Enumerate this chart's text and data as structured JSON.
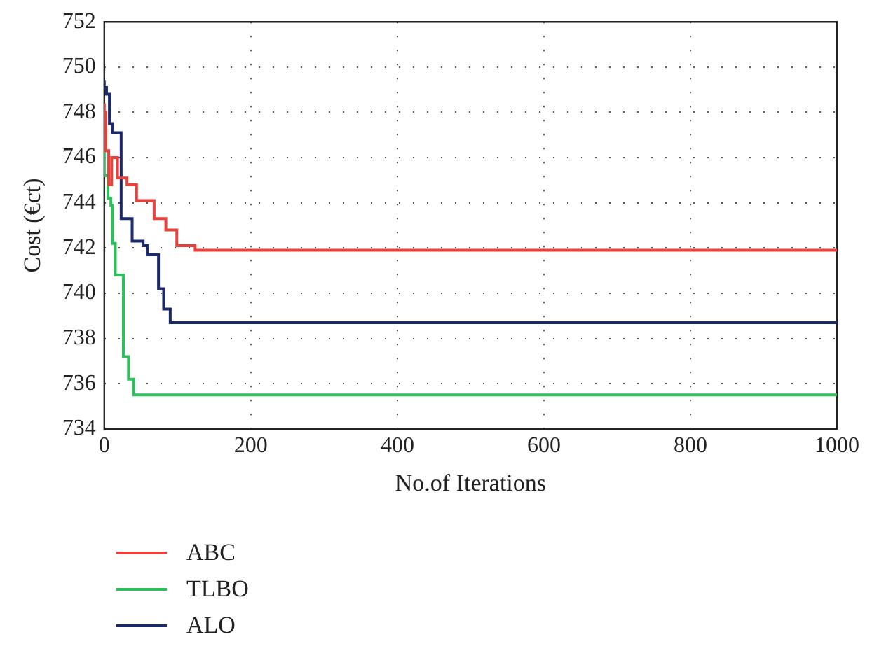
{
  "chart_data": {
    "type": "step",
    "xlabel": "No.of Iterations",
    "ylabel": "Cost (€ct)",
    "xlim": [
      0,
      1000
    ],
    "xticks": [
      0,
      200,
      400,
      600,
      800,
      1000
    ],
    "ylim": [
      734,
      752
    ],
    "yticks": [
      734,
      736,
      738,
      740,
      742,
      744,
      746,
      748,
      750,
      752
    ],
    "grid": true,
    "legend": "bottom",
    "series": [
      {
        "name": "ABC",
        "color": "#e8403a",
        "x": [
          0,
          2,
          6,
          10,
          18,
          31,
          44,
          68,
          84,
          99,
          124,
          185,
          1000
        ],
        "values": [
          748.4,
          748.0,
          746.3,
          744.8,
          746.0,
          745.1,
          744.8,
          744.1,
          743.3,
          742.8,
          742.1,
          741.9,
          741.9
        ]
      },
      {
        "name": "TLBO",
        "color": "#2dbf5a",
        "x": [
          0,
          5,
          9,
          11,
          15,
          26,
          33,
          40,
          45,
          1000
        ],
        "values": [
          746.3,
          745.2,
          744.2,
          743.9,
          742.2,
          740.8,
          737.2,
          736.2,
          735.5,
          735.5
        ]
      },
      {
        "name": "ALO",
        "color": "#1a2a6c",
        "x": [
          0,
          3,
          7,
          11,
          23,
          38,
          53,
          59,
          74,
          81,
          90,
          116,
          1000
        ],
        "values": [
          749.4,
          749.1,
          748.8,
          747.5,
          747.1,
          743.3,
          742.3,
          742.1,
          741.7,
          740.2,
          739.3,
          738.7,
          738.7
        ]
      }
    ]
  }
}
